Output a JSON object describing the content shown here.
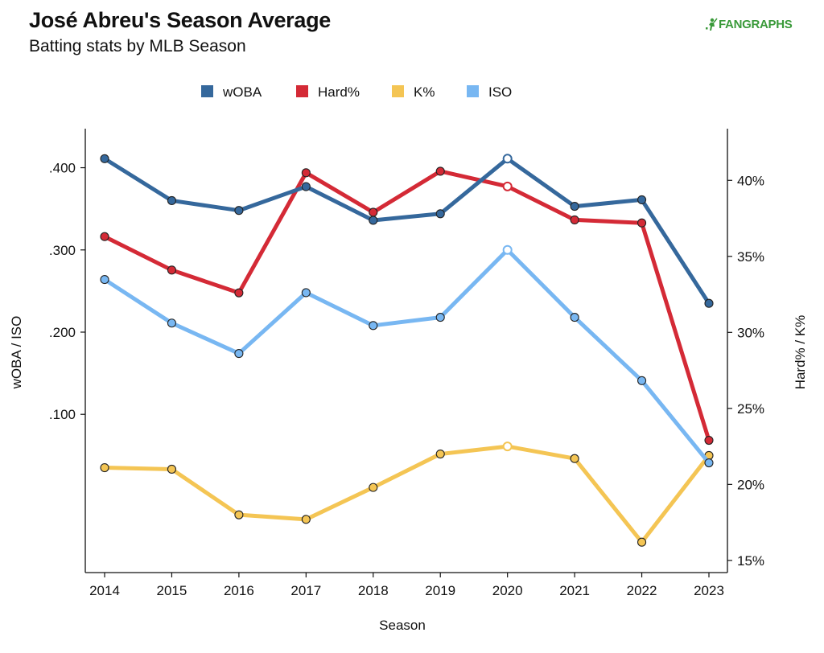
{
  "header": {
    "title": "José Abreu's Season Average",
    "subtitle": "Batting stats by MLB Season",
    "brand": "FANGRAPHS"
  },
  "colors": {
    "wOBA": "#35689c",
    "Hard%": "#d42a36",
    "K%": "#f4c554",
    "ISO": "#78b7f2"
  },
  "chart_data": {
    "type": "line",
    "title": "José Abreu's Season Average",
    "subtitle": "Batting stats by MLB Season",
    "xlabel": "Season",
    "ylabel_left": "wOBA / ISO",
    "ylabel_right": "Hard% / K%",
    "categories": [
      "2014",
      "2015",
      "2016",
      "2017",
      "2018",
      "2019",
      "2020",
      "2021",
      "2022",
      "2023"
    ],
    "ylim_left": [
      -0.0925,
      0.4475
    ],
    "yticks_left": [
      ".100",
      ".200",
      ".300",
      ".400"
    ],
    "ylim_right": [
      14.2,
      43.4
    ],
    "yticks_right": [
      "15%",
      "20%",
      "25%",
      "30%",
      "35%",
      "40%"
    ],
    "legend_position": "top",
    "highlight_year": "2020",
    "series": [
      {
        "name": "wOBA",
        "axis": "left",
        "values": [
          0.411,
          0.36,
          0.348,
          0.377,
          0.336,
          0.344,
          0.411,
          0.353,
          0.361,
          0.235
        ]
      },
      {
        "name": "Hard%",
        "axis": "right",
        "values": [
          36.3,
          34.1,
          32.6,
          40.5,
          37.9,
          40.6,
          39.6,
          37.4,
          37.2,
          22.9
        ]
      },
      {
        "name": "K%",
        "axis": "right",
        "values": [
          21.1,
          21.0,
          18.0,
          17.7,
          19.8,
          22.0,
          22.5,
          21.7,
          16.2,
          21.9
        ]
      },
      {
        "name": "ISO",
        "axis": "left",
        "values": [
          0.264,
          0.211,
          0.174,
          0.248,
          0.208,
          0.218,
          0.3,
          0.218,
          0.141,
          0.041
        ]
      }
    ],
    "grid": false
  }
}
